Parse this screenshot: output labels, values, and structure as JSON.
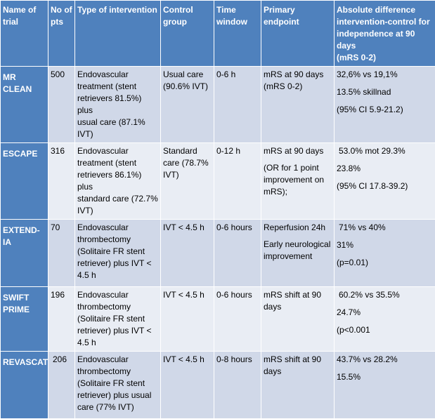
{
  "headers": {
    "name": [
      "Name of",
      "trial"
    ],
    "pts": [
      "No of",
      "pts"
    ],
    "type": "Type of intervention",
    "control": [
      "Control",
      "group"
    ],
    "time": [
      "Time",
      "window"
    ],
    "endpoint": "Primary endpoint",
    "diff": [
      "Absolute difference",
      "intervention-control for",
      "independence at 90 days",
      "(mRS 0-2)"
    ]
  },
  "rows": [
    {
      "name": [
        "MR CLEAN"
      ],
      "pts": "500",
      "intervention": [
        "Endovascular",
        "treatment (stent",
        "retrievers 81.5%) plus",
        "usual care (87.1% IVT)"
      ],
      "control": [
        "Usual care",
        "(90.6% IVT)"
      ],
      "time": "0-6 h",
      "endpoint": [
        "mRS at 90 days",
        "(mRS 0-2)"
      ],
      "diff": [
        "32,6% vs 19,1%",
        "13.5% skillnad",
        "(95% CI 5.9-21.2)"
      ]
    },
    {
      "name": [
        "ESCAPE"
      ],
      "pts": "316",
      "intervention": [
        "Endovascular",
        "treatment (stent",
        "retrievers 86.1%) plus",
        "standard care (72.7%",
        "IVT)"
      ],
      "control": [
        "Standard",
        "care (78.7%",
        "IVT)"
      ],
      "time": "0-12 h",
      "endpoint": [
        "mRS at 90 days",
        "(OR for 1 point",
        "improvement on",
        "mRS);"
      ],
      "diff": [
        "53.0% mot 29.3%",
        "23.8%",
        "(95% CI 17.8-39.2)"
      ]
    },
    {
      "name": [
        "EXTEND-IA"
      ],
      "pts": "70",
      "intervention": [
        "Endovascular",
        "thrombectomy",
        "(Solitaire FR stent",
        "retriever) plus IVT <",
        "4.5 h"
      ],
      "control": [
        "IVT < 4.5 h"
      ],
      "time": "0-6 hours",
      "endpoint": [
        "Reperfusion 24h",
        "Early neurological",
        "improvement"
      ],
      "diff": [
        "71% vs 40%",
        "31%",
        "(p=0.01)"
      ]
    },
    {
      "name": [
        "SWIFT",
        "PRIME"
      ],
      "pts": "196",
      "intervention": [
        "Endovascular",
        "thrombectomy",
        "(Solitaire FR stent",
        "retriever) plus IVT <",
        "4.5 h"
      ],
      "control": [
        "IVT < 4.5 h"
      ],
      "time": "0-6 hours",
      "endpoint": [
        "mRS shift at 90",
        "days"
      ],
      "diff": [
        "60.2% vs 35.5%",
        "24.7%",
        "(p<0.001"
      ]
    },
    {
      "name": [
        "REVASCAT"
      ],
      "pts": "206",
      "intervention": [
        "Endovascular",
        "thrombectomy",
        "(Solitaire FR stent",
        "retriever) plus usual",
        "care (77% IVT)"
      ],
      "control": [
        "IVT < 4.5 h"
      ],
      "time": "0-8 hours",
      "endpoint": [
        "mRS shift at 90",
        "days"
      ],
      "diff": [
        "43.7% vs 28.2%",
        "15.5%"
      ]
    }
  ],
  "colors": {
    "header_bg": "#4f81bd",
    "row_odd_bg": "#d0d8e8",
    "row_even_bg": "#e9edf4",
    "header_text": "#ffffff"
  }
}
